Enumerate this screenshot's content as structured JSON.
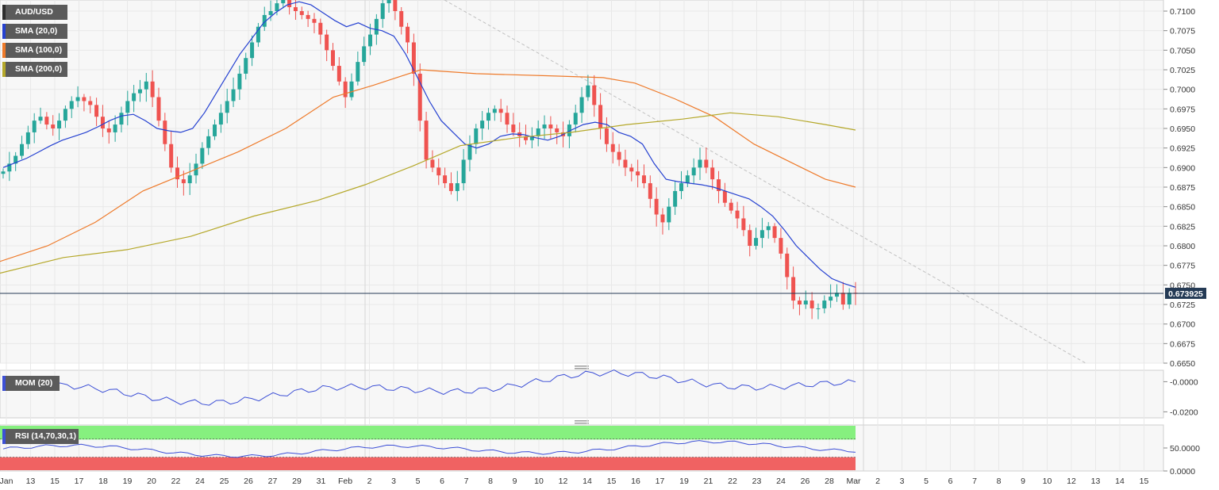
{
  "colors": {
    "up": "#26a69a",
    "down": "#ef5350",
    "sma20": "#2541d1",
    "sma100": "#ee7a2a",
    "sma200": "#b5a82a",
    "mom": "#3c4fd6",
    "rsi": "#3c4fd6",
    "rsi_overbought": "#86f07f",
    "rsi_oversold": "#f06262",
    "price_line": "#243a55",
    "trendline": "#c0c0c0",
    "grid": "#e8e8e8"
  },
  "tags": {
    "main": "AUD/USD",
    "sma20": "SMA (20,0)",
    "sma100": "SMA (100,0)",
    "sma200": "SMA (200,0)",
    "mom": "MOM (20)",
    "rsi": "RSI (14,70,30,1)"
  },
  "current_price_label": "0.673925",
  "chart_data": [
    {
      "type": "candlestick",
      "title": "AUD/USD",
      "ylim": [
        0.665,
        0.7105
      ],
      "yticks": [
        "0.7100",
        "0.7075",
        "0.7050",
        "0.7025",
        "0.7000",
        "0.6975",
        "0.6950",
        "0.6925",
        "0.6900",
        "0.6875",
        "0.6850",
        "0.6825",
        "0.6800",
        "0.6775",
        "0.6750",
        "0.6725",
        "0.6700",
        "0.6675",
        "0.6650"
      ],
      "x_labels": [
        "Jan",
        "13",
        "15",
        "17",
        "18",
        "19",
        "20",
        "22",
        "24",
        "25",
        "26",
        "27",
        "29",
        "31",
        "Feb",
        "2",
        "3",
        "5",
        "6",
        "7",
        "8",
        "9",
        "10",
        "12",
        "14",
        "15",
        "16",
        "17",
        "19",
        "21",
        "22",
        "23",
        "24",
        "26",
        "28",
        "Mar",
        "2",
        "3",
        "5",
        "6",
        "7",
        "8",
        "9",
        "10",
        "12",
        "13",
        "14",
        "15"
      ],
      "last_price": 0.673925,
      "price_path": [
        0.6895,
        0.6905,
        0.6915,
        0.693,
        0.6945,
        0.696,
        0.6965,
        0.6955,
        0.695,
        0.696,
        0.6975,
        0.6985,
        0.699,
        0.6985,
        0.698,
        0.6965,
        0.695,
        0.6945,
        0.6955,
        0.697,
        0.6985,
        0.6995,
        0.7,
        0.701,
        0.699,
        0.696,
        0.693,
        0.69,
        0.6885,
        0.688,
        0.689,
        0.6905,
        0.6925,
        0.694,
        0.6955,
        0.697,
        0.6985,
        0.7,
        0.702,
        0.704,
        0.706,
        0.708,
        0.7095,
        0.71,
        0.711,
        0.7115,
        0.7105,
        0.71,
        0.7095,
        0.709,
        0.7085,
        0.707,
        0.705,
        0.703,
        0.701,
        0.699,
        0.701,
        0.7035,
        0.7055,
        0.707,
        0.709,
        0.711,
        0.7115,
        0.71,
        0.708,
        0.706,
        0.702,
        0.696,
        0.691,
        0.69,
        0.689,
        0.688,
        0.687,
        0.688,
        0.691,
        0.693,
        0.695,
        0.696,
        0.697,
        0.6975,
        0.697,
        0.6955,
        0.6945,
        0.694,
        0.6935,
        0.694,
        0.695,
        0.6955,
        0.695,
        0.6945,
        0.694,
        0.6955,
        0.697,
        0.699,
        0.7005,
        0.698,
        0.695,
        0.693,
        0.692,
        0.691,
        0.69,
        0.6895,
        0.689,
        0.688,
        0.686,
        0.684,
        0.683,
        0.685,
        0.687,
        0.688,
        0.689,
        0.69,
        0.691,
        0.69,
        0.6885,
        0.687,
        0.6855,
        0.6845,
        0.6835,
        0.682,
        0.68,
        0.681,
        0.682,
        0.6825,
        0.681,
        0.679,
        0.676,
        0.673,
        0.6725,
        0.673,
        0.672,
        0.672,
        0.673,
        0.6735,
        0.674,
        0.6725,
        0.674,
        0.673925
      ],
      "sma20_path": [
        0.69,
        0.6906,
        0.6912,
        0.692,
        0.6928,
        0.6935,
        0.694,
        0.6945,
        0.6952,
        0.696,
        0.6966,
        0.6968,
        0.696,
        0.695,
        0.6947,
        0.6945,
        0.695,
        0.697,
        0.6995,
        0.702,
        0.7045,
        0.7065,
        0.7085,
        0.7098,
        0.7108,
        0.7112,
        0.7108,
        0.7098,
        0.7088,
        0.708,
        0.7085,
        0.7078,
        0.7075,
        0.7068,
        0.7045,
        0.7015,
        0.6985,
        0.696,
        0.6945,
        0.693,
        0.6925,
        0.693,
        0.694,
        0.6943,
        0.6942,
        0.6938,
        0.6935,
        0.694,
        0.6948,
        0.6955,
        0.6958,
        0.6955,
        0.6945,
        0.694,
        0.693,
        0.6905,
        0.6885,
        0.6882,
        0.688,
        0.6878,
        0.6875,
        0.687,
        0.6865,
        0.686,
        0.685,
        0.6838,
        0.682,
        0.68,
        0.6785,
        0.677,
        0.6758,
        0.6752,
        0.6747
      ]
    },
    {
      "type": "line",
      "title": "MOM (20)",
      "yticks": [
        "-0.0000",
        "-0.0200"
      ]
    },
    {
      "type": "line",
      "title": "RSI (14,70,30,1)",
      "yticks": [
        "50.0000",
        "0.0000"
      ]
    }
  ]
}
